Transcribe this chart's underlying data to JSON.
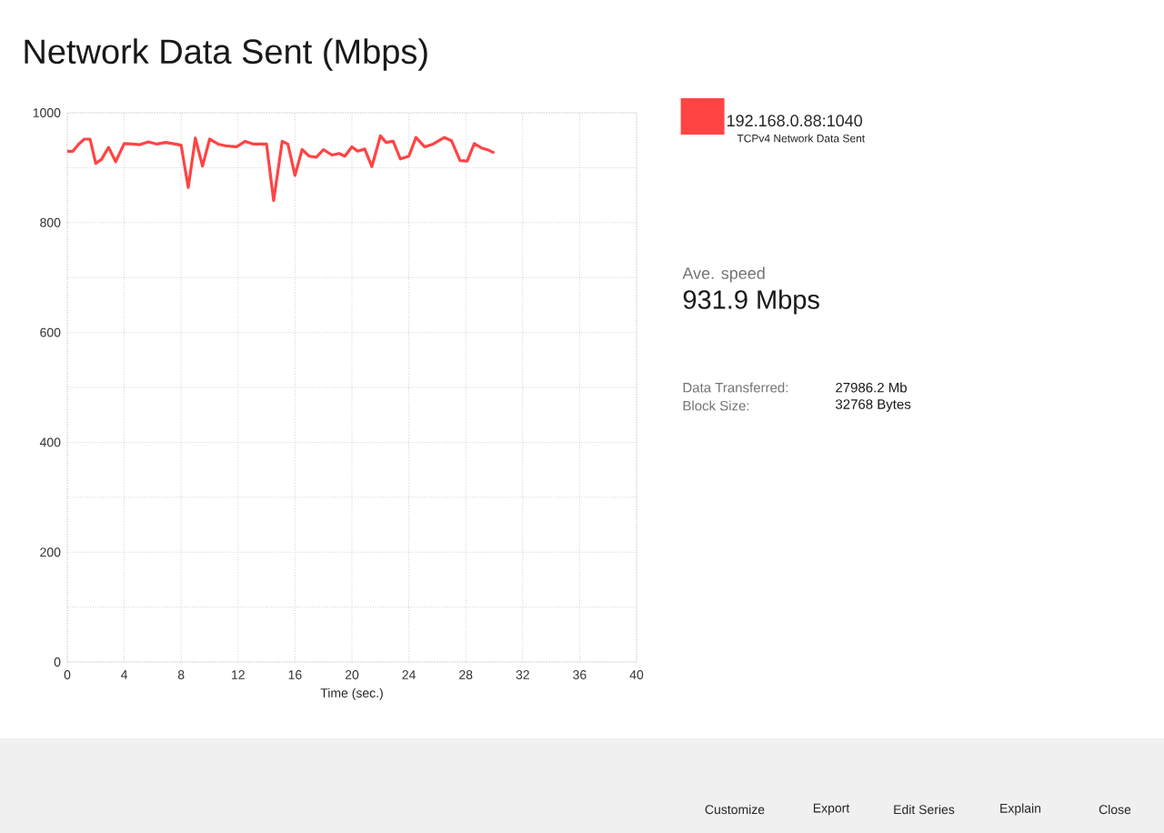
{
  "chart_data": {
    "type": "line",
    "title": "Network Data Sent (Mbps)",
    "xlabel": "Time (sec.)",
    "annotations": [
      "TCPv4 Network Data Sent",
      "Ave. speed",
      "931.9 Mbps",
      "Data Transferred:",
      "27986.2 Mb",
      "Block Size:",
      "32768 Bytes",
      "Customize",
      "Export",
      "Edit Series",
      "Explain",
      "Close"
    ],
    "x": [
      0,
      0.4,
      0.8,
      1.2,
      1.6,
      2.0,
      2.4,
      2.9,
      3.4,
      4.0,
      4.6,
      5.1,
      5.7,
      6.3,
      6.9,
      7.4,
      8.0,
      8.5,
      9.0,
      9.5,
      10.0,
      10.6,
      11.1,
      11.9,
      12.5,
      13.1,
      14.0,
      14.5,
      15.1,
      15.5,
      16.0,
      16.5,
      17.0,
      17.5,
      18.0,
      18.6,
      19.1,
      19.5,
      20.0,
      20.4,
      20.9,
      21.4,
      22.0,
      22.4,
      22.9,
      23.4,
      24.0,
      24.5,
      25.1,
      25.7,
      26.5,
      27.0,
      27.6,
      28.1,
      28.6,
      29.1,
      29.6,
      30.0
    ],
    "series": [
      {
        "name": "192.168.0.88:1040",
        "color": "#ff4444",
        "values": [
          930,
          930,
          943,
          952,
          952,
          908,
          915,
          937,
          911,
          944,
          943,
          942,
          947,
          943,
          946,
          944,
          941,
          864,
          954,
          903,
          952,
          943,
          940,
          938,
          948,
          943,
          943,
          840,
          948,
          943,
          886,
          933,
          921,
          919,
          933,
          923,
          926,
          921,
          938,
          930,
          934,
          902,
          958,
          946,
          948,
          916,
          921,
          955,
          938,
          943,
          955,
          949,
          913,
          912,
          944,
          936,
          932,
          927
        ]
      }
    ],
    "xlim": [
      0,
      40
    ],
    "ylim": [
      0,
      1000
    ],
    "xticks": [
      0,
      4,
      8,
      12,
      16,
      20,
      24,
      28,
      32,
      36,
      40
    ],
    "yticks": [
      0,
      {
        "value": 100,
        "label": null
      },
      200,
      {
        "value": 300,
        "label": null
      },
      400,
      {
        "value": 500,
        "label": null
      },
      600,
      {
        "value": 700,
        "label": null
      },
      800,
      {
        "value": 900,
        "label": null
      },
      1000
    ],
    "grid": true,
    "legend": "right",
    "marker": "none",
    "line_style": "solid"
  }
}
